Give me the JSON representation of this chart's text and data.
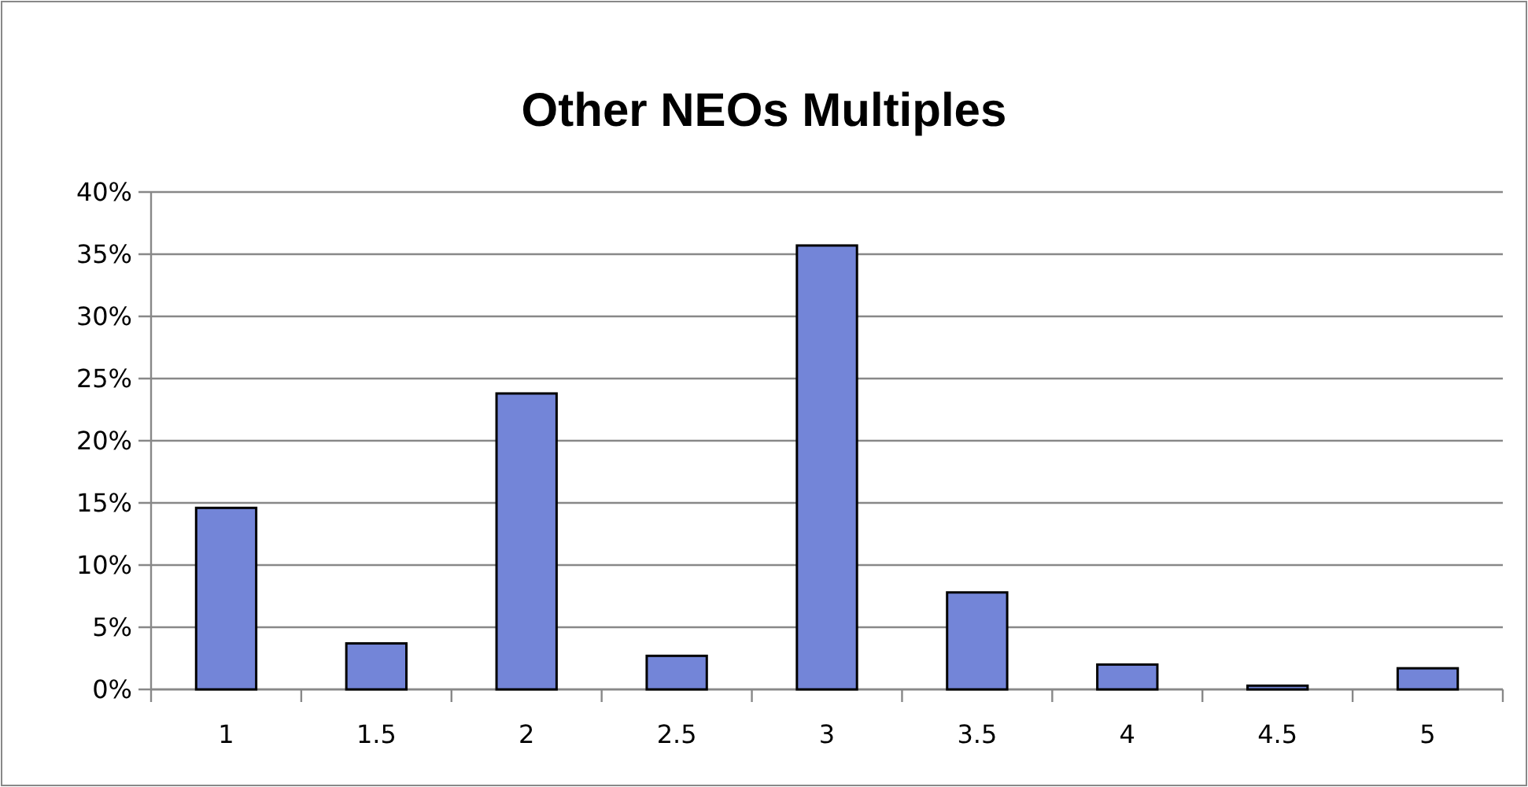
{
  "chart_data": {
    "type": "bar",
    "title": "Other NEOs Multiples",
    "categories": [
      "1",
      "1.5",
      "2",
      "2.5",
      "3",
      "3.5",
      "4",
      "4.5",
      "5"
    ],
    "values": [
      14.6,
      3.7,
      23.8,
      2.7,
      35.7,
      7.8,
      2.0,
      0.3,
      1.7
    ],
    "color": "#7385d8",
    "ylim": [
      0,
      40
    ],
    "yticks": [
      {
        "value": 0,
        "label": "0%"
      },
      {
        "value": 5,
        "label": "5%"
      },
      {
        "value": 10,
        "label": "10%"
      },
      {
        "value": 15,
        "label": "15%"
      },
      {
        "value": 20,
        "label": "20%"
      },
      {
        "value": 25,
        "label": "25%"
      },
      {
        "value": 30,
        "label": "30%"
      },
      {
        "value": 35,
        "label": "35%"
      },
      {
        "value": 40,
        "label": "40%"
      }
    ],
    "grid": "y"
  }
}
